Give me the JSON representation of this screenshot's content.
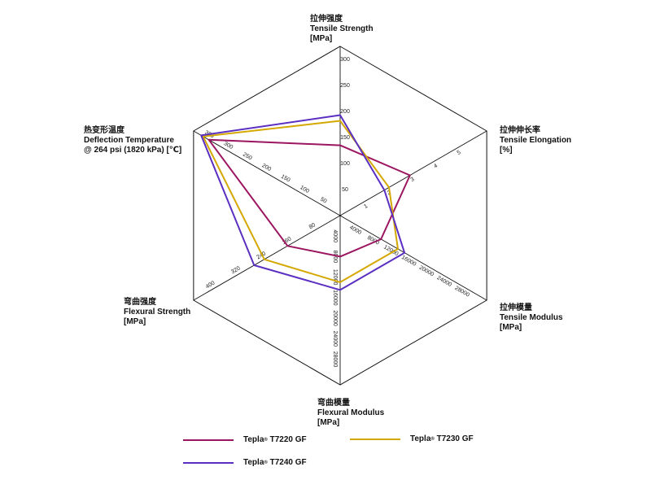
{
  "chart_data": {
    "type": "radar",
    "axes": [
      {
        "key": "tensile_strength",
        "cn": "拉伸强度",
        "en": "Tensile Strength",
        "unit": "[MPa]",
        "ticks": [
          "50",
          "100",
          "150",
          "200",
          "250",
          "300"
        ],
        "max": 325
      },
      {
        "key": "tensile_elongation",
        "cn": "拉伸伸长率",
        "en": "Tensile Elongation",
        "unit": "[%]",
        "ticks": [
          "1",
          "2",
          "3",
          "4",
          "5"
        ],
        "max": 6.3
      },
      {
        "key": "tensile_modulus",
        "cn": "拉伸模量",
        "en": "Tensile Modulus",
        "unit": "[MPa]",
        "ticks": [
          "4000",
          "8000",
          "12000",
          "16000",
          "20000",
          "24000",
          "28000"
        ],
        "max": 33000
      },
      {
        "key": "flexural_modulus",
        "cn": "弯曲模量",
        "en": "Flexural Modulus",
        "unit": "[MPa]",
        "ticks": [
          "4000",
          "8000",
          "12000",
          "16000",
          "20000",
          "24000",
          "28000"
        ],
        "max": 33000
      },
      {
        "key": "flexural_strength",
        "cn": "弯曲强度",
        "en": "Flexural Strength",
        "unit": "[MPa]",
        "ticks": [
          "80",
          "160",
          "240",
          "320",
          "400"
        ],
        "max": 460
      },
      {
        "key": "deflection_temperature",
        "cn": "热变形温度",
        "en": "Deflection Temperature",
        "en2": "@ 264 psi (1820 kPa) [℃]",
        "ticks": [
          "50",
          "100",
          "150",
          "200",
          "250",
          "300",
          "350"
        ],
        "max": 385
      }
    ],
    "series": [
      {
        "name": "T7220 GF",
        "color": "#9b1560",
        "values": [
          135,
          3.0,
          9200,
          8000,
          165,
          345
        ]
      },
      {
        "name": "T7230 GF",
        "color": "#d4a800",
        "values": [
          182,
          2.1,
          13000,
          13000,
          238,
          360
        ]
      },
      {
        "name": "T7240 GF",
        "color": "#5a2fc2",
        "values": [
          193,
          1.9,
          14500,
          14500,
          270,
          365
        ]
      }
    ],
    "legend": {
      "brand": "Tepla",
      "registered": "®"
    }
  }
}
